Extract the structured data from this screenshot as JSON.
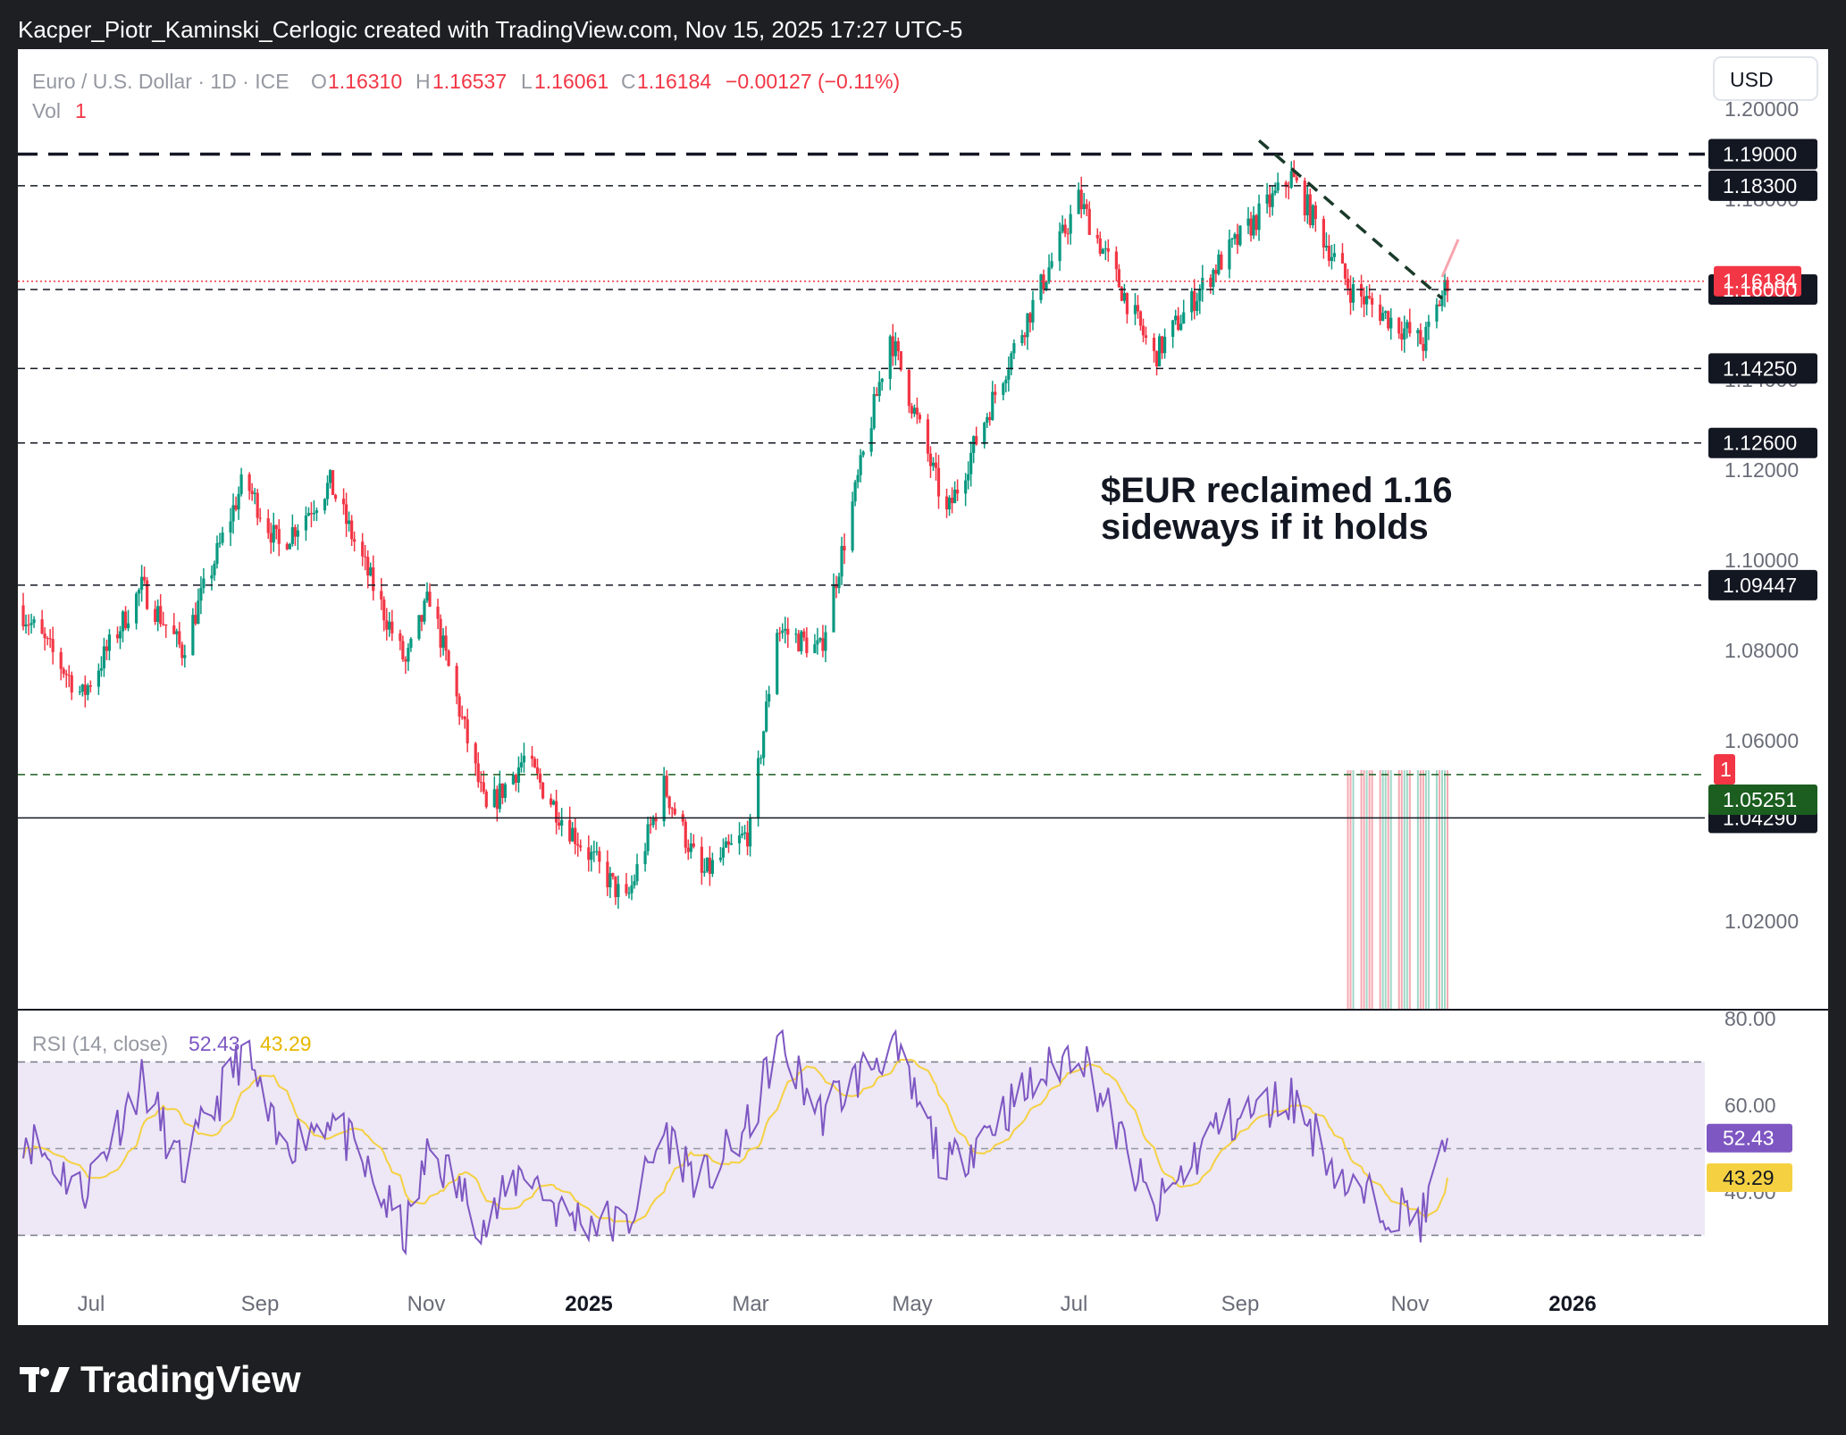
{
  "header": {
    "attribution": "Kacper_Piotr_Kaminski_Cerlogic created with TradingView.com, Nov 15, 2025 17:27 UTC-5"
  },
  "legend": {
    "symbol": "Euro / U.S. Dollar · 1D · ICE",
    "o_label": "O",
    "o": "1.16310",
    "h_label": "H",
    "h": "1.16537",
    "l_label": "L",
    "l": "1.16061",
    "c_label": "C",
    "c": "1.16184",
    "change": "−0.00127 (−0.11%)",
    "vol_label": "Vol",
    "vol": "1"
  },
  "currency_button": "USD",
  "annotation": {
    "line1": "$EUR reclaimed 1.16",
    "line2": "sideways if it holds"
  },
  "price_axis": {
    "ticks": [
      "1.20000",
      "1.18000",
      "1.14000",
      "1.12000",
      "1.10000",
      "1.08000",
      "1.06000",
      "1.02000"
    ]
  },
  "levels": [
    {
      "label": "1.19000",
      "value": 1.19,
      "style": "bold-dash",
      "box": "black"
    },
    {
      "label": "1.18300",
      "value": 1.183,
      "style": "dash",
      "box": "black"
    },
    {
      "label": "1.16000",
      "value": 1.16,
      "style": "dash",
      "box": "black"
    },
    {
      "label": "1.14250",
      "value": 1.1425,
      "style": "dash",
      "box": "black"
    },
    {
      "label": "1.12600",
      "value": 1.126,
      "style": "dash",
      "box": "black"
    },
    {
      "label": "1.09447",
      "value": 1.09447,
      "style": "dash",
      "box": "black"
    },
    {
      "label": "1.04290",
      "value": 1.0429,
      "style": "solid",
      "box": "black"
    }
  ],
  "last_price_label": "1.16184",
  "volume_labels": {
    "count": "1",
    "price": "1.05251"
  },
  "rsi": {
    "title": "RSI (14, close)",
    "value": "52.43",
    "ma": "43.29",
    "ticks": [
      "80.00",
      "60.00",
      "40.00"
    ]
  },
  "time_axis": [
    "Jul",
    "Sep",
    "Nov",
    "2025",
    "Mar",
    "May",
    "Jul",
    "Sep",
    "Nov",
    "2026"
  ],
  "brand": "TradingView",
  "colors": {
    "up": "#089981",
    "down": "#f23645",
    "rsi": "#7e57c2",
    "rsi_ma": "#f5d142",
    "rsi_band": "#ede7f6",
    "last": "#f23645"
  },
  "chart_data": {
    "type": "candlestick",
    "x_range": [
      "2024-06-01",
      "2025-11-14"
    ],
    "y_range": [
      1.0,
      1.2
    ],
    "anchors": [
      {
        "date": "2024-06-01",
        "close": 1.09
      },
      {
        "date": "2024-06-25",
        "close": 1.07
      },
      {
        "date": "2024-07-17",
        "close": 1.094
      },
      {
        "date": "2024-08-01",
        "close": 1.08
      },
      {
        "date": "2024-08-24",
        "close": 1.118
      },
      {
        "date": "2024-09-06",
        "close": 1.103
      },
      {
        "date": "2024-09-25",
        "close": 1.117
      },
      {
        "date": "2024-10-23",
        "close": 1.077
      },
      {
        "date": "2024-11-01",
        "close": 1.092
      },
      {
        "date": "2024-11-22",
        "close": 1.044
      },
      {
        "date": "2024-12-06",
        "close": 1.056
      },
      {
        "date": "2024-12-20",
        "close": 1.043
      },
      {
        "date": "2025-01-13",
        "close": 1.024
      },
      {
        "date": "2025-01-27",
        "close": 1.05
      },
      {
        "date": "2025-02-10",
        "close": 1.03
      },
      {
        "date": "2025-02-28",
        "close": 1.04
      },
      {
        "date": "2025-03-10",
        "close": 1.085
      },
      {
        "date": "2025-03-26",
        "close": 1.08
      },
      {
        "date": "2025-04-21",
        "close": 1.15
      },
      {
        "date": "2025-05-12",
        "close": 1.11
      },
      {
        "date": "2025-06-01",
        "close": 1.14
      },
      {
        "date": "2025-06-30",
        "close": 1.18
      },
      {
        "date": "2025-07-28",
        "close": 1.145
      },
      {
        "date": "2025-08-20",
        "close": 1.165
      },
      {
        "date": "2025-09-17",
        "close": 1.185
      },
      {
        "date": "2025-10-09",
        "close": 1.16
      },
      {
        "date": "2025-11-05",
        "close": 1.148
      },
      {
        "date": "2025-11-14",
        "close": 1.16184
      }
    ],
    "rsi_range": [
      20,
      80
    ],
    "rsi_anchors": [
      {
        "date": "2024-06-01",
        "rsi": 55
      },
      {
        "date": "2024-06-25",
        "rsi": 40
      },
      {
        "date": "2024-07-17",
        "rsi": 66
      },
      {
        "date": "2024-08-01",
        "rsi": 45
      },
      {
        "date": "2024-08-24",
        "rsi": 73
      },
      {
        "date": "2024-09-06",
        "rsi": 50
      },
      {
        "date": "2024-09-25",
        "rsi": 58
      },
      {
        "date": "2024-10-23",
        "rsi": 30
      },
      {
        "date": "2024-11-01",
        "rsi": 50
      },
      {
        "date": "2024-11-22",
        "rsi": 32
      },
      {
        "date": "2024-12-06",
        "rsi": 46
      },
      {
        "date": "2024-12-20",
        "rsi": 35
      },
      {
        "date": "2025-01-13",
        "rsi": 32
      },
      {
        "date": "2025-01-27",
        "rsi": 54
      },
      {
        "date": "2025-02-10",
        "rsi": 42
      },
      {
        "date": "2025-02-28",
        "rsi": 55
      },
      {
        "date": "2025-03-10",
        "rsi": 75
      },
      {
        "date": "2025-03-26",
        "rsi": 58
      },
      {
        "date": "2025-04-21",
        "rsi": 74
      },
      {
        "date": "2025-05-12",
        "rsi": 45
      },
      {
        "date": "2025-06-01",
        "rsi": 58
      },
      {
        "date": "2025-06-30",
        "rsi": 74
      },
      {
        "date": "2025-07-28",
        "rsi": 35
      },
      {
        "date": "2025-08-20",
        "rsi": 55
      },
      {
        "date": "2025-09-17",
        "rsi": 62
      },
      {
        "date": "2025-10-09",
        "rsi": 40
      },
      {
        "date": "2025-11-05",
        "rsi": 34
      },
      {
        "date": "2025-11-14",
        "rsi": 52.43
      }
    ],
    "rsi_ma_last": 43.29,
    "trendline": [
      {
        "date": "2025-09-05",
        "price": 1.193
      },
      {
        "date": "2025-11-12",
        "price": 1.158
      }
    ]
  }
}
